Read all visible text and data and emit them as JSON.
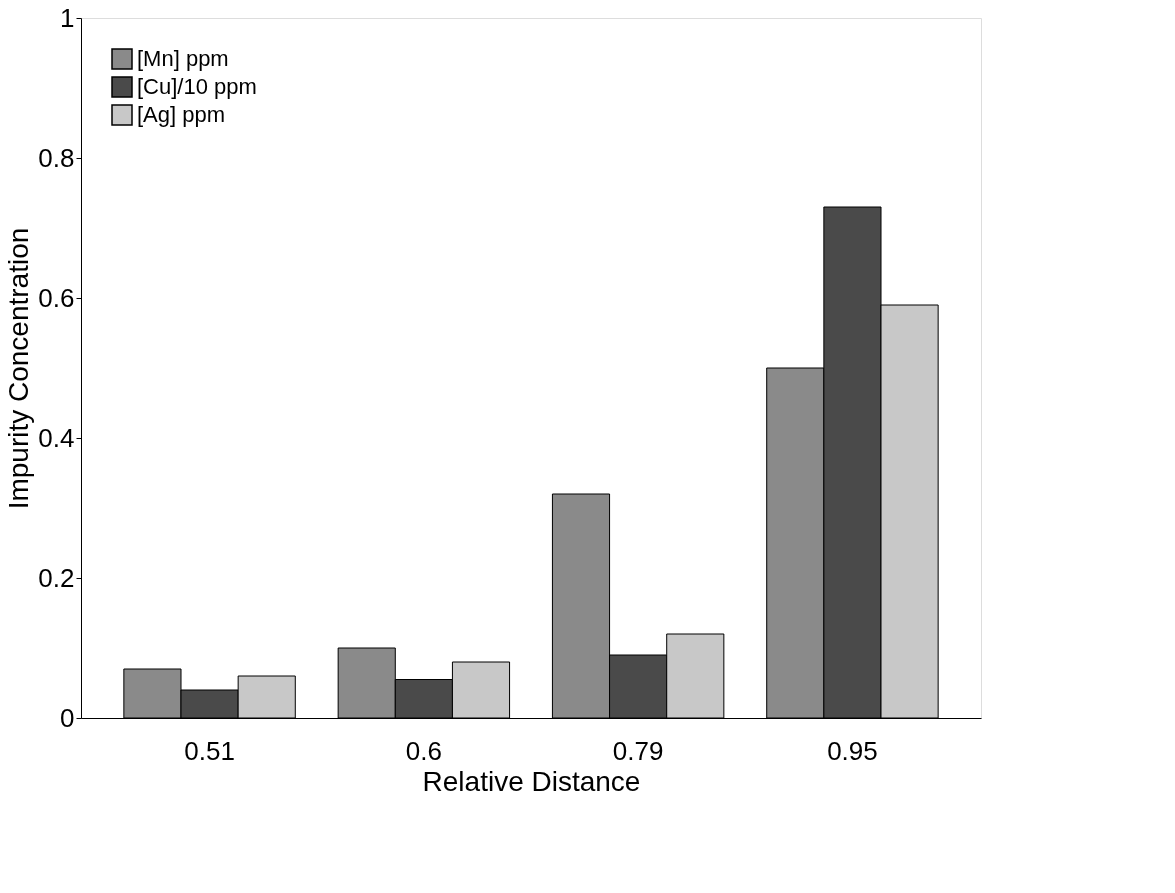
{
  "chart_data": {
    "type": "bar",
    "xlabel": "Relative Distance",
    "ylabel": "Impurity Concentration",
    "categories": [
      "0.51",
      "0.6",
      "0.79",
      "0.95"
    ],
    "series": [
      {
        "name": "[Mn] ppm",
        "color": "#8a8a8a",
        "values": [
          0.07,
          0.1,
          0.32,
          0.5
        ]
      },
      {
        "name": "[Cu]/10 ppm",
        "color": "#4a4a4a",
        "values": [
          0.04,
          0.055,
          0.09,
          0.73
        ]
      },
      {
        "name": "[Ag] ppm",
        "color": "#c8c8c8",
        "values": [
          0.06,
          0.08,
          0.12,
          0.59
        ]
      }
    ],
    "ylim": [
      0,
      1
    ],
    "yticks": [
      0,
      0.2,
      0.4,
      0.6,
      0.8,
      1
    ],
    "grid": false,
    "legend": "top left"
  }
}
